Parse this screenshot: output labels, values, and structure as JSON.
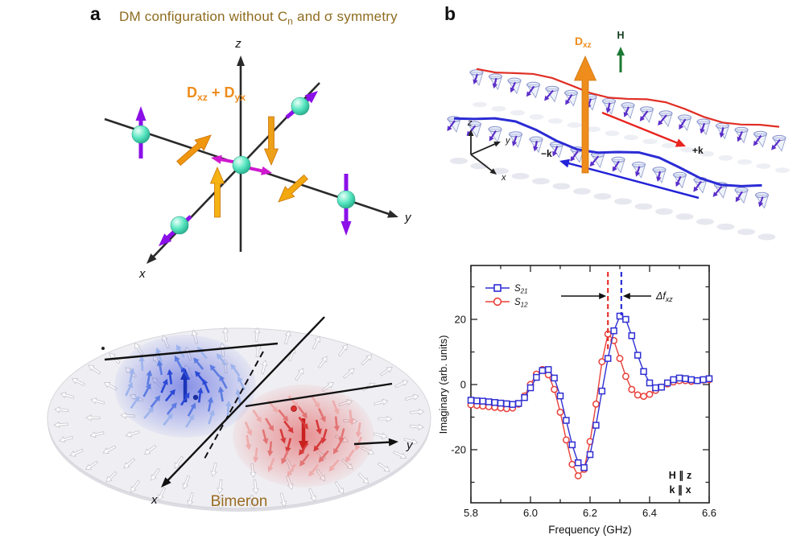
{
  "colors": {
    "title_brown": "#8f6b1e",
    "orange": "#ee8c1c",
    "purple": "#8b10e8",
    "magenta": "#cf18cf",
    "sphere_teal": "#57e6c0",
    "series_blue": "#2f2fd3",
    "series_red": "#e8403a",
    "field_green": "#1d7a34",
    "axis_black": "#222222"
  },
  "panel_a": {
    "label": "a",
    "title_pre": "DM configuration without C",
    "title_sub": "n",
    "title_post": " and σ symmetry",
    "dm_vector_label": {
      "term1_base": "D",
      "term1_sub": "xz",
      "operator": " + ",
      "term2_base": "D",
      "term2_sub": "yx"
    },
    "axes": {
      "x": "x",
      "y": "y",
      "z": "z"
    },
    "bimeron": {
      "caption": "Bimeron",
      "axes": {
        "x": "x",
        "y": "y"
      }
    }
  },
  "panel_b": {
    "label": "b",
    "dm_arrow_label": {
      "base": "D",
      "sub": "xz"
    },
    "field_label": "H",
    "wavevector_plus": "+k",
    "wavevector_minus": "−k",
    "axes": {
      "x": "x",
      "y": "y",
      "z": "z"
    }
  },
  "chart_data": {
    "type": "line",
    "title": "",
    "xlabel": "Frequency (GHz)",
    "ylabel": "Imaginary  (arb. units)",
    "xlim": [
      5.8,
      6.6
    ],
    "ylim": [
      -36,
      36
    ],
    "xticks": [
      5.8,
      6.0,
      6.2,
      6.4,
      6.6
    ],
    "xticks_minor": [
      5.9,
      6.1,
      6.3,
      6.5
    ],
    "yticks": [
      -20,
      0,
      20
    ],
    "yticks_minor": [
      -30,
      -10,
      10,
      30
    ],
    "grid": false,
    "legend_position": "top-left",
    "annotations": {
      "delta_base": "Δf",
      "delta_sub": "xz",
      "s12_peak_dash_freq": 6.26,
      "s21_peak_dash_freq": 6.305,
      "field_condition": "H ∥ z",
      "wavevector_condition": "k ∥ x"
    },
    "x": [
      5.8,
      5.82,
      5.84,
      5.86,
      5.88,
      5.9,
      5.92,
      5.94,
      5.96,
      5.98,
      6.0,
      6.02,
      6.04,
      6.06,
      6.08,
      6.1,
      6.12,
      6.14,
      6.16,
      6.18,
      6.2,
      6.22,
      6.24,
      6.26,
      6.28,
      6.3,
      6.32,
      6.34,
      6.36,
      6.38,
      6.4,
      6.42,
      6.44,
      6.46,
      6.48,
      6.5,
      6.52,
      6.54,
      6.56,
      6.58,
      6.6
    ],
    "series": [
      {
        "label_base": "S",
        "label_sub": "12",
        "marker": "circle",
        "color": "#e8403a",
        "values": [
          -6.2,
          -6.4,
          -6.6,
          -6.8,
          -7.0,
          -7.2,
          -7.4,
          -7.2,
          -6.0,
          -3.5,
          0.0,
          3.2,
          4.6,
          3.0,
          -1.5,
          -8.5,
          -17.0,
          -24.5,
          -28.0,
          -26.0,
          -17.5,
          -6.0,
          7.0,
          15.5,
          13.5,
          8.0,
          2.5,
          -1.5,
          -3.2,
          -3.6,
          -3.0,
          -1.8,
          -0.8,
          0.2,
          0.8,
          1.2,
          1.2,
          1.0,
          1.2,
          1.4,
          1.5
        ]
      },
      {
        "label_base": "S",
        "label_sub": "21",
        "marker": "square",
        "color": "#2f2fd3",
        "values": [
          -4.8,
          -5.0,
          -5.1,
          -5.3,
          -5.5,
          -5.7,
          -5.9,
          -6.1,
          -5.8,
          -4.0,
          -1.0,
          2.2,
          4.3,
          4.6,
          2.0,
          -3.5,
          -11.0,
          -18.5,
          -24.0,
          -25.5,
          -21.5,
          -12.5,
          -2.0,
          8.0,
          16.5,
          21.0,
          20.0,
          15.0,
          9.0,
          4.0,
          0.5,
          -1.0,
          -0.8,
          0.5,
          1.5,
          2.0,
          1.8,
          1.5,
          1.2,
          1.5,
          1.8
        ]
      }
    ]
  }
}
